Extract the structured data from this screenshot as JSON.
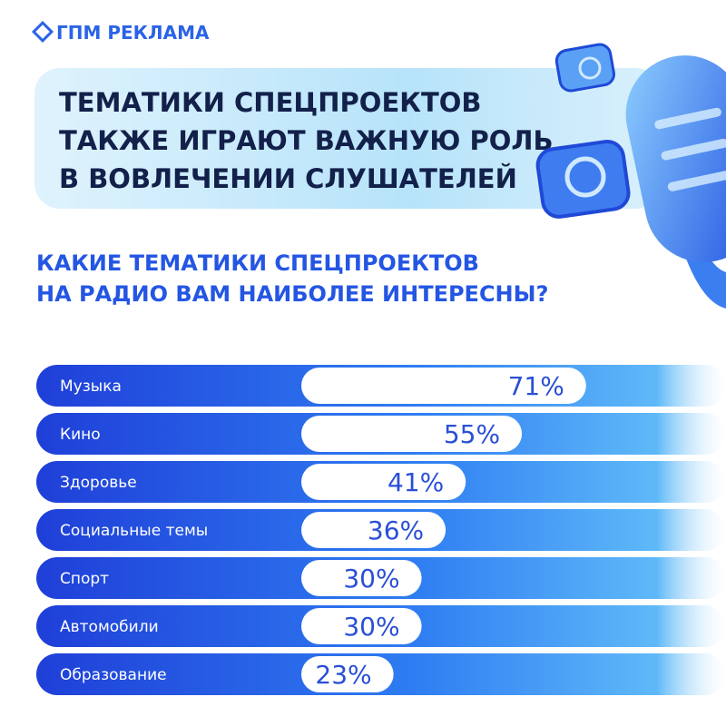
{
  "logo": "ГПМ РЕКЛАМА",
  "headline": [
    "ТЕМАТИКИ СПЕЦПРОЕКТОВ",
    "ТАКЖЕ ИГРАЮТ ВАЖНУЮ РОЛЬ",
    "В ВОВЛЕЧЕНИИ СЛУШАТЕЛЕЙ"
  ],
  "chart_data": {
    "type": "bar",
    "orientation": "horizontal",
    "title": [
      "КАКИЕ ТЕМАТИКИ СПЕЦПРОЕКТОВ",
      "НА РАДИО ВАМ НАИБОЛЕЕ ИНТЕРЕСНЫ?"
    ],
    "categories": [
      "Музыка",
      "Кино",
      "Здоровье",
      "Социальные темы",
      "Спорт",
      "Автомобили",
      "Образование"
    ],
    "values": [
      71,
      55,
      41,
      36,
      30,
      30,
      23
    ],
    "value_labels": [
      "71%",
      "55%",
      "41%",
      "36%",
      "30%",
      "30%",
      "23%"
    ],
    "color": "#ffffff",
    "xlim": [
      0,
      100
    ]
  }
}
